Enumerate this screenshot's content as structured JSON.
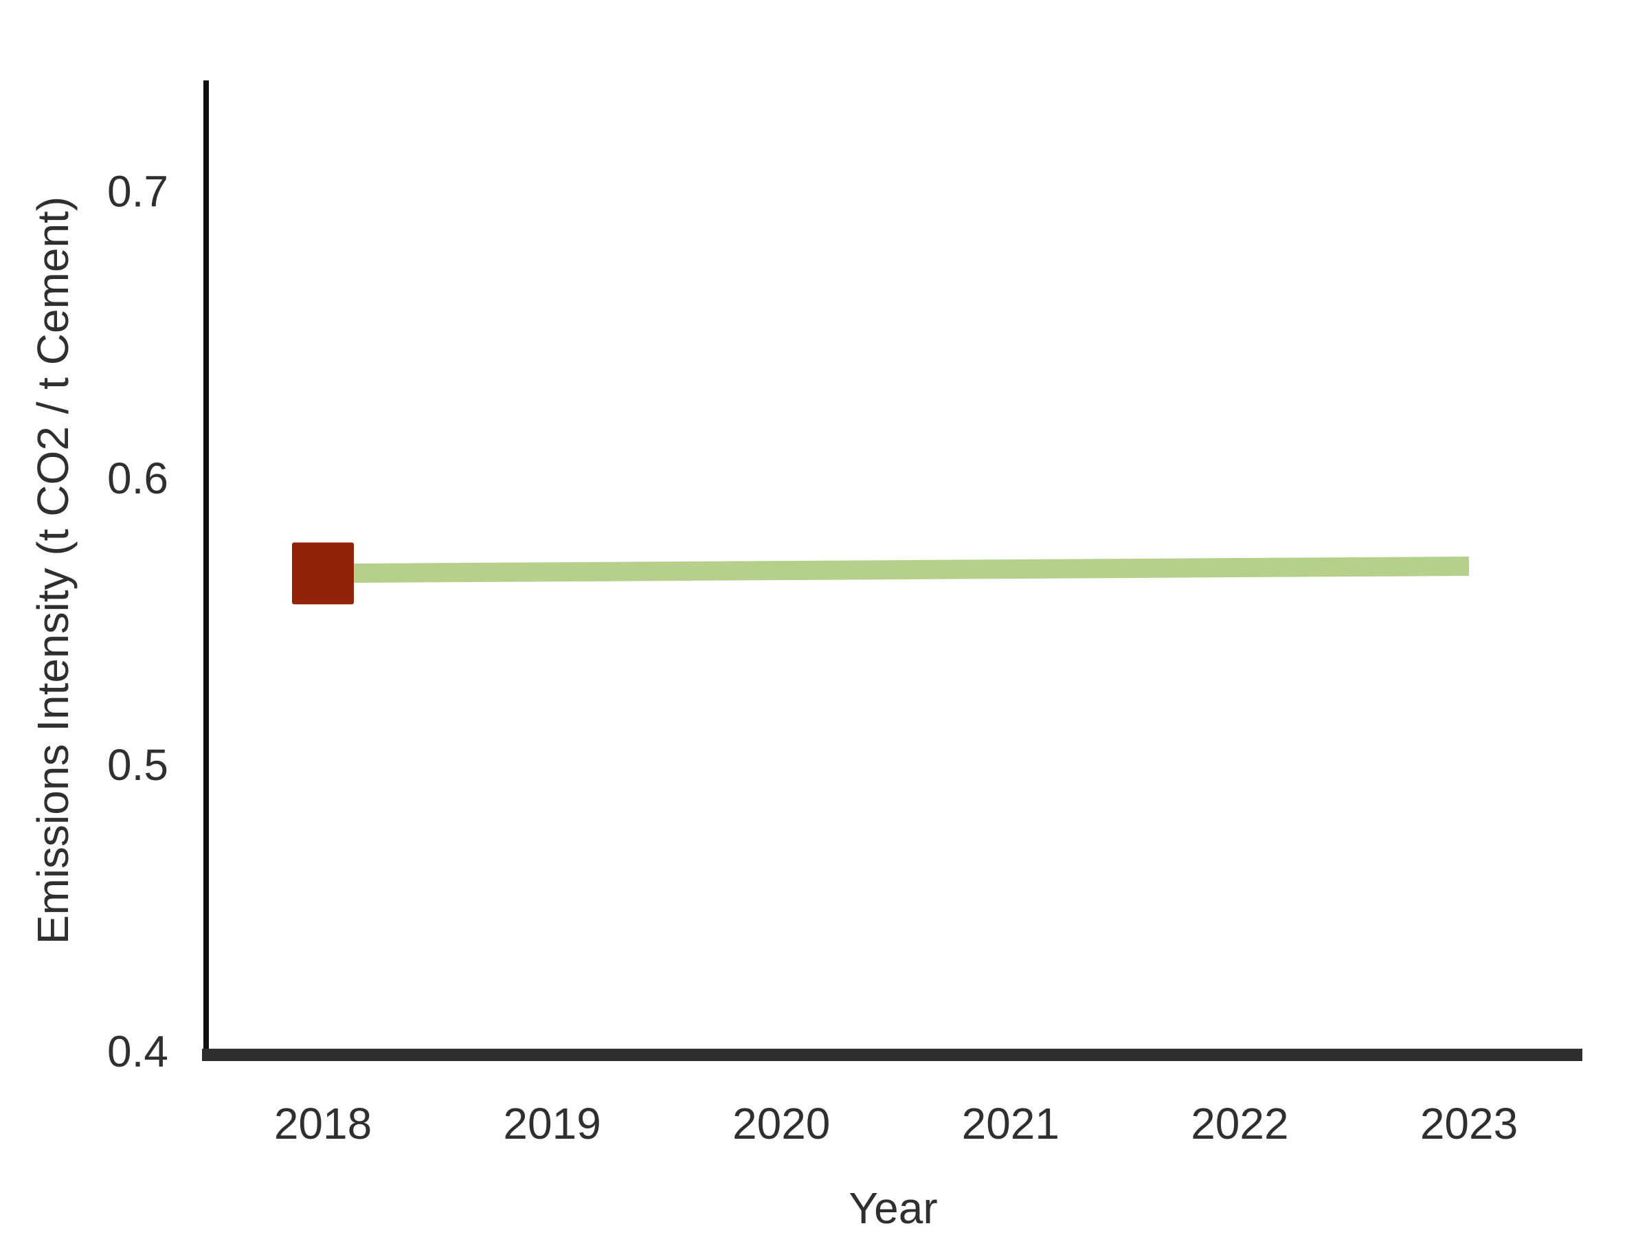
{
  "chart_data": {
    "type": "line",
    "title": "",
    "xlabel": "Year",
    "ylabel": "Emissions Intensity (t CO2 / t Cement)",
    "x": [
      "2018",
      "2019",
      "2020",
      "2021",
      "2022",
      "2023"
    ],
    "ylim": [
      0.4,
      0.74
    ],
    "yticks": [
      "0.4",
      "0.5",
      "0.6",
      "0.7"
    ],
    "grid": false,
    "legend": "none",
    "series": [
      {
        "values": [
          0.568,
          0.5685,
          0.569,
          0.5695,
          0.57,
          0.5705
        ],
        "color": "#b5d08a"
      }
    ],
    "markers": [
      {
        "x": "2018",
        "value": 0.568,
        "shape": "square",
        "color": "#922309"
      }
    ]
  }
}
